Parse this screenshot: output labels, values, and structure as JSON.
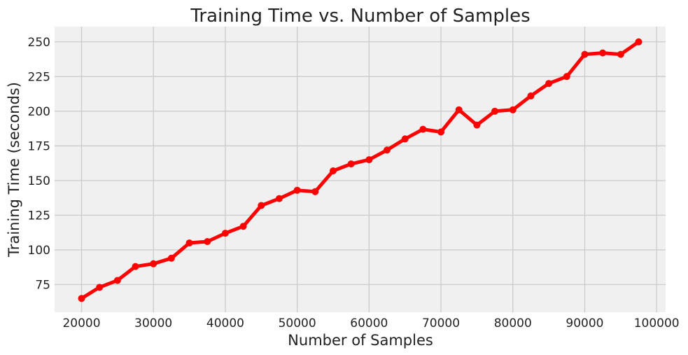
{
  "chart_data": {
    "type": "line",
    "title": "Training Time vs. Number of Samples",
    "xlabel": "Number of Samples",
    "ylabel": "Training Time (seconds)",
    "xlim": [
      16250,
      101250
    ],
    "ylim": [
      55,
      261
    ],
    "xticks": [
      20000,
      30000,
      40000,
      50000,
      60000,
      70000,
      80000,
      90000,
      100000
    ],
    "yticks": [
      75,
      100,
      125,
      150,
      175,
      200,
      225,
      250
    ],
    "grid": true,
    "legend": "none",
    "colors": {
      "line": "#ff0000",
      "plot_bg": "#f0f0f0",
      "grid": "#cbcbcb",
      "page_bg": "#ffffff"
    },
    "series": [
      {
        "x": [
          20000,
          22500,
          25000,
          27500,
          30000,
          32500,
          35000,
          37500,
          40000,
          42500,
          45000,
          47500,
          50000,
          52500,
          55000,
          57500,
          60000,
          62500,
          65000,
          67500,
          70000,
          72500,
          75000,
          77500,
          80000,
          82500,
          85000,
          87500,
          90000,
          92500,
          95000,
          97500
        ],
        "y": [
          65,
          73,
          78,
          88,
          90,
          94,
          105,
          106,
          112,
          117,
          132,
          137,
          143,
          142,
          157,
          162,
          165,
          172,
          180,
          187,
          185,
          201,
          190,
          200,
          201,
          211,
          220,
          225,
          241,
          242,
          241,
          250
        ]
      }
    ]
  }
}
